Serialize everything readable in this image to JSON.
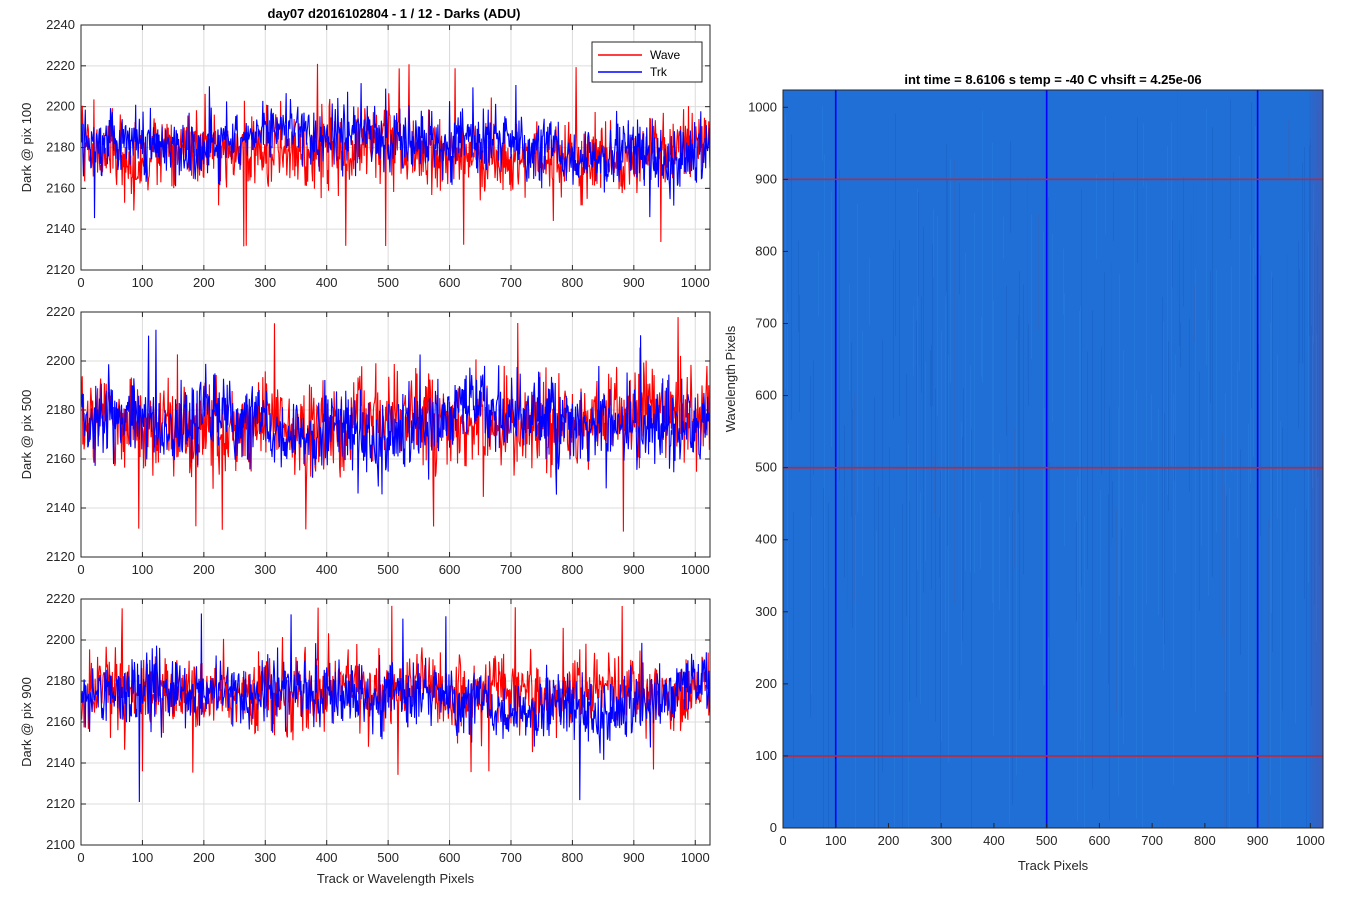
{
  "figure": {
    "title": "day07 d2016102804 - 1 / 12 - Darks (ADU)"
  },
  "chart_data": [
    {
      "type": "line",
      "panel": "top-left",
      "ylabel": "Dark @ pix 100",
      "xlabel": "",
      "xlim": [
        0,
        1024
      ],
      "ylim": [
        2120,
        2240
      ],
      "xticks": [
        0,
        100,
        200,
        300,
        400,
        500,
        600,
        700,
        800,
        900,
        1000
      ],
      "yticks": [
        2120,
        2140,
        2160,
        2180,
        2200,
        2220,
        2240
      ],
      "grid": true,
      "legend": {
        "placement": "top-right",
        "entries": [
          "Wave",
          "Trk"
        ]
      },
      "series": [
        {
          "name": "Wave",
          "color": "#ff0000",
          "mean": 2176,
          "noise": 9,
          "min": 2131,
          "max": 2221,
          "seed": 11
        },
        {
          "name": "Trk",
          "color": "#0000ff",
          "mean": 2182,
          "noise": 8,
          "min": 2143,
          "max": 2212,
          "seed": 12
        }
      ]
    },
    {
      "type": "line",
      "panel": "middle-left",
      "ylabel": "Dark @ pix 500",
      "xlabel": "",
      "xlim": [
        0,
        1024
      ],
      "ylim": [
        2120,
        2220
      ],
      "xticks": [
        0,
        100,
        200,
        300,
        400,
        500,
        600,
        700,
        800,
        900,
        1000
      ],
      "yticks": [
        2120,
        2140,
        2160,
        2180,
        2200,
        2220
      ],
      "grid": true,
      "series": [
        {
          "name": "Wave",
          "color": "#ff0000",
          "mean": 2176,
          "noise": 9,
          "min": 2130,
          "max": 2218,
          "seed": 21
        },
        {
          "name": "Trk",
          "color": "#0000ff",
          "mean": 2176,
          "noise": 8,
          "min": 2143,
          "max": 2213,
          "seed": 22
        }
      ]
    },
    {
      "type": "line",
      "panel": "bottom-left",
      "ylabel": "Dark @ pix 900",
      "xlabel": "Track or Wavelength Pixels",
      "xlim": [
        0,
        1024
      ],
      "ylim": [
        2100,
        2220
      ],
      "xticks": [
        0,
        100,
        200,
        300,
        400,
        500,
        600,
        700,
        800,
        900,
        1000
      ],
      "yticks": [
        2100,
        2120,
        2140,
        2160,
        2180,
        2200,
        2220
      ],
      "grid": true,
      "series": [
        {
          "name": "Wave",
          "color": "#ff0000",
          "mean": 2175,
          "noise": 9,
          "min": 2134,
          "max": 2218,
          "seed": 31
        },
        {
          "name": "Trk",
          "color": "#0000ff",
          "mean": 2172,
          "noise": 8,
          "min": 2119,
          "max": 2213,
          "seed": 32
        }
      ]
    },
    {
      "type": "heatmap",
      "panel": "right",
      "title": "int time = 8.6106 s    temp = -40 C    vhsift = 4.25e-06",
      "xlabel": "Track Pixels",
      "ylabel": "Wavelength Pixels",
      "xlim": [
        0,
        1024
      ],
      "ylim": [
        0,
        1024
      ],
      "xticks": [
        0,
        100,
        200,
        300,
        400,
        500,
        600,
        700,
        800,
        900,
        1000
      ],
      "yticks": [
        0,
        100,
        200,
        300,
        400,
        500,
        600,
        700,
        800,
        900,
        1000
      ],
      "grid": false,
      "vertical_markers": {
        "color": "#0000ff",
        "x": [
          100,
          500,
          900
        ]
      },
      "horizontal_markers": {
        "color": "#d0202a",
        "y": [
          100,
          500,
          900
        ]
      },
      "base_color": "#1f6fd6"
    }
  ]
}
